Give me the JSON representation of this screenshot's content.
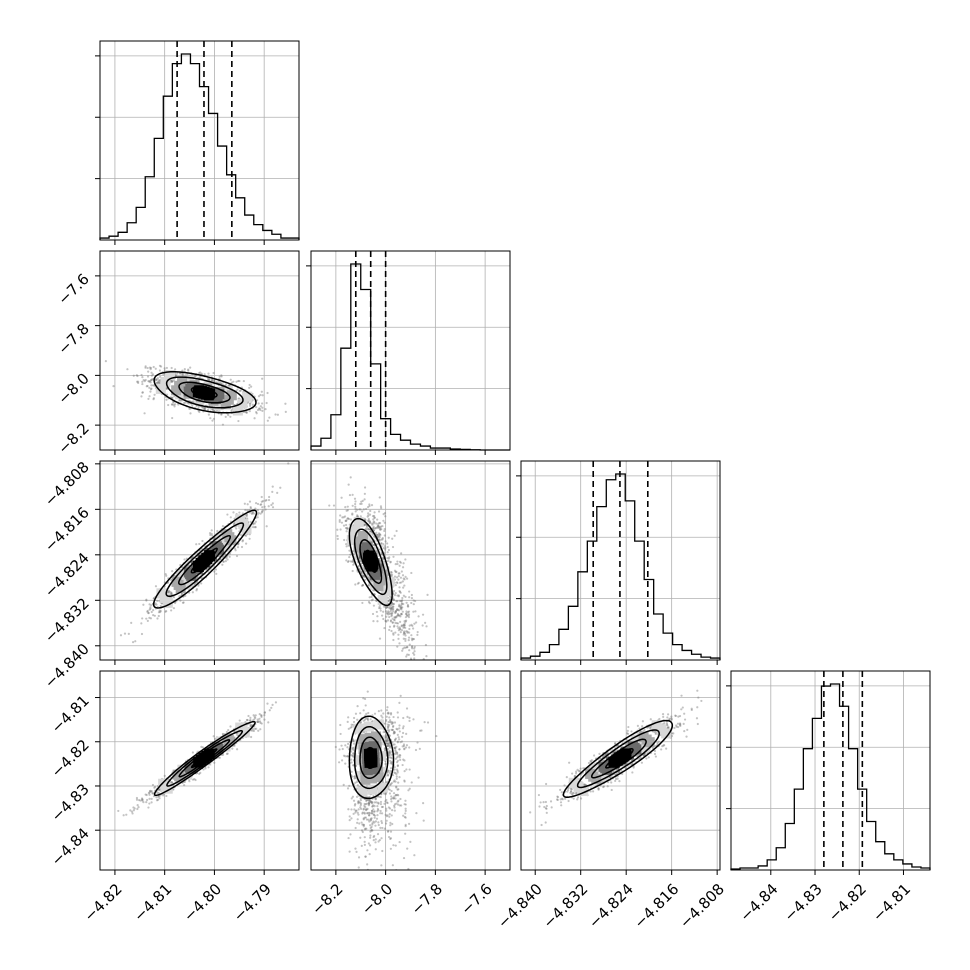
{
  "chart_data": {
    "type": "corner",
    "title": "",
    "colors": {
      "ink": "#000000",
      "grid": "#b0b0b0",
      "scatter": "#7a7a7a",
      "frame": "#000000"
    },
    "grid": true,
    "parameters": [
      {
        "range": [
          -4.823,
          -4.783
        ],
        "quantiles": [
          -4.8075,
          -4.8021,
          -4.7965
        ],
        "ticks": [
          -4.82,
          -4.81,
          -4.8,
          -4.79
        ],
        "tick_labels": [
          "−4.82",
          "−4.81",
          "−4.80",
          "−4.79"
        ]
      },
      {
        "range": [
          -8.3,
          -7.5
        ],
        "quantiles": [
          -8.12,
          -8.06,
          -8.0
        ],
        "ticks": [
          -8.2,
          -8.0,
          -7.8,
          -7.6
        ],
        "tick_labels": [
          "−8.2",
          "−8.0",
          "−7.8",
          "−7.6"
        ]
      },
      {
        "range": [
          -4.8425,
          -4.8075
        ],
        "quantiles": [
          -4.8298,
          -4.8251,
          -4.8202
        ],
        "ticks": [
          -4.84,
          -4.832,
          -4.824,
          -4.816,
          -4.808
        ],
        "tick_labels": [
          "−4.840",
          "−4.832",
          "−4.824",
          "−4.816",
          "−4.808"
        ]
      },
      {
        "range": [
          -4.849,
          -4.804
        ],
        "quantiles": [
          -4.828,
          -4.8237,
          -4.8193
        ],
        "ticks": [
          -4.84,
          -4.83,
          -4.82,
          -4.81
        ],
        "tick_labels": [
          "−4.84",
          "−4.83",
          "−4.82",
          "−4.81"
        ]
      }
    ],
    "histograms": [
      {
        "param": 0,
        "edges": [
          -4.823,
          -4.783
        ],
        "counts": [
          1,
          2,
          4,
          9,
          17,
          33,
          53,
          75,
          92,
          97,
          92,
          80,
          66,
          49,
          34,
          22,
          13,
          8,
          5,
          3,
          1,
          1
        ]
      },
      {
        "param": 1,
        "edges": [
          -8.3,
          -7.5
        ],
        "counts": [
          2,
          6,
          18,
          52,
          95,
          82,
          44,
          16,
          8,
          5,
          3,
          2,
          1,
          1,
          0.5,
          0.3,
          0.1,
          0,
          0,
          0
        ]
      },
      {
        "param": 2,
        "edges": [
          -4.8425,
          -4.8075
        ],
        "counts": [
          1,
          2,
          4,
          8,
          16,
          28,
          46,
          62,
          80,
          94,
          97,
          83,
          62,
          42,
          24,
          14,
          8,
          5,
          3,
          1.5,
          1
        ]
      },
      {
        "param": 3,
        "edges": [
          -4.849,
          -4.804
        ],
        "counts": [
          0.5,
          1,
          1,
          2,
          5,
          11,
          23,
          40,
          60,
          75,
          91,
          92,
          81,
          60,
          40,
          24,
          14,
          8,
          5,
          3,
          1.5,
          1
        ]
      }
    ],
    "pairs": [
      {
        "x": 0,
        "y": 1,
        "center": [
          -4.8021,
          -8.07
        ],
        "sd_major": [
          0.005,
          -0.028
        ],
        "sd_minor": [
          0.001,
          0.03
        ]
      },
      {
        "x": 0,
        "y": 2,
        "center": [
          -4.8021,
          -4.8251
        ],
        "sd_major": [
          0.0051,
          0.0042
        ],
        "sd_minor": [
          -0.0007,
          0.0009
        ]
      },
      {
        "x": 1,
        "y": 2,
        "center": [
          -8.06,
          -4.8251
        ],
        "sd_major": [
          0.04,
          -0.0034
        ],
        "sd_minor": [
          0.015,
          0.0017
        ]
      },
      {
        "x": 0,
        "y": 3,
        "center": [
          -4.8021,
          -4.8237
        ],
        "sd_major": [
          0.005,
          0.0041
        ],
        "sd_minor": [
          -0.0005,
          0.0006
        ]
      },
      {
        "x": 1,
        "y": 3,
        "center": [
          -8.06,
          -4.8237
        ],
        "sd_major": [
          0.005,
          -0.0046
        ],
        "sd_minor": [
          0.044,
          0.0005
        ]
      },
      {
        "x": 2,
        "y": 3,
        "center": [
          -4.8251,
          -4.8237
        ],
        "sd_major": [
          0.0047,
          0.0042
        ],
        "sd_minor": [
          -0.0009,
          0.001
        ]
      }
    ]
  }
}
